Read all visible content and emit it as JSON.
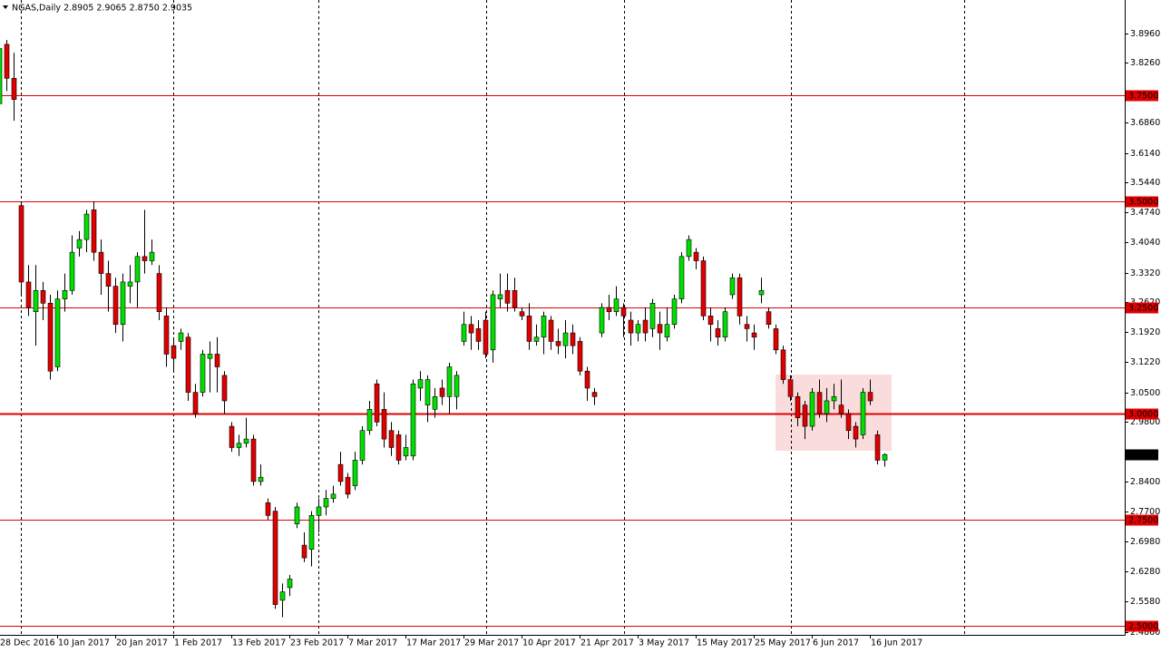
{
  "chart_data": {
    "type": "candlestick",
    "title": "NGAS,Daily  2.8905 2.9065 2.8750 2.9035",
    "categories": [
      "28 Dec 2016",
      null,
      null,
      null,
      null,
      null,
      null,
      null,
      "10 Jan 2017",
      null,
      null,
      null,
      null,
      null,
      null,
      null,
      "20 Jan 2017",
      null,
      null,
      null,
      null,
      null,
      null,
      null,
      "1 Feb 2017",
      null,
      null,
      null,
      null,
      null,
      null,
      null,
      "13 Feb 2017",
      null,
      null,
      null,
      null,
      null,
      null,
      null,
      "23 Feb 2017",
      null,
      null,
      null,
      null,
      null,
      null,
      null,
      "7 Mar 2017",
      null,
      null,
      null,
      null,
      null,
      null,
      null,
      "17 Mar 2017",
      null,
      null,
      null,
      null,
      null,
      null,
      null,
      "29 Mar 2017",
      null,
      null,
      null,
      null,
      null,
      null,
      null,
      "10 Apr 2017",
      null,
      null,
      null,
      null,
      null,
      null,
      null,
      "21 Apr 2017",
      null,
      null,
      null,
      null,
      null,
      null,
      null,
      "3 May 2017",
      null,
      null,
      null,
      null,
      null,
      null,
      null,
      "15 May 2017",
      null,
      null,
      null,
      null,
      null,
      null,
      null,
      "25 May 2017",
      null,
      null,
      null,
      null,
      null,
      null,
      null,
      "6 Jun 2017",
      null,
      null,
      null,
      null,
      null,
      null,
      null,
      "16 Jun 2017",
      null,
      null
    ],
    "open": [
      3.73,
      3.87,
      3.79,
      3.49,
      3.31,
      3.24,
      3.29,
      3.26,
      3.11,
      3.27,
      3.29,
      3.39,
      3.41,
      3.48,
      3.38,
      3.33,
      3.3,
      3.21,
      3.3,
      3.31,
      3.37,
      3.36,
      3.33,
      3.23,
      3.16,
      3.17,
      3.18,
      3.05,
      3.05,
      3.13,
      3.14,
      3.09,
      2.97,
      2.92,
      2.93,
      2.94,
      2.84,
      2.79,
      2.77,
      2.56,
      2.59,
      2.74,
      2.69,
      2.68,
      2.76,
      2.78,
      2.8,
      2.88,
      2.85,
      2.83,
      2.89,
      2.96,
      3.07,
      3.01,
      2.96,
      2.95,
      2.9,
      2.9,
      3.06,
      3.02,
      3.01,
      3.06,
      3.04,
      3.04,
      3.17,
      3.21,
      3.2,
      3.22,
      3.15,
      3.27,
      3.29,
      3.29,
      3.24,
      3.23,
      3.17,
      3.18,
      3.22,
      3.17,
      3.16,
      3.19,
      3.17,
      3.1,
      3.05,
      3.19,
      3.25,
      3.24,
      3.25,
      3.22,
      3.19,
      3.22,
      3.2,
      3.21,
      3.18,
      3.21,
      3.27,
      3.37,
      3.38,
      3.36,
      3.23,
      3.2,
      3.18,
      3.28,
      3.32,
      3.21,
      3.19,
      3.28,
      3.24,
      3.2,
      3.15,
      3.08,
      3.04,
      3.02,
      2.97,
      3.05,
      3.0,
      3.03,
      3.02,
      3.0,
      2.97,
      2.95,
      3.05,
      2.95,
      2.8905
    ],
    "high": [
      3.87,
      3.88,
      3.85,
      3.5,
      3.35,
      3.35,
      3.31,
      3.28,
      3.29,
      3.33,
      3.42,
      3.43,
      3.48,
      3.5,
      3.41,
      3.36,
      3.32,
      3.33,
      3.35,
      3.38,
      3.48,
      3.41,
      3.35,
      3.25,
      3.18,
      3.2,
      3.19,
      3.07,
      3.15,
      3.17,
      3.18,
      3.1,
      2.98,
      2.95,
      2.99,
      2.95,
      2.88,
      2.8,
      2.78,
      2.6,
      2.62,
      2.79,
      2.72,
      2.77,
      2.8,
      2.82,
      2.83,
      2.91,
      2.86,
      2.91,
      2.97,
      3.03,
      3.08,
      3.05,
      2.98,
      2.96,
      2.95,
      3.08,
      3.1,
      3.09,
      3.06,
      3.08,
      3.12,
      3.1,
      3.24,
      3.23,
      3.22,
      3.24,
      3.29,
      3.33,
      3.33,
      3.32,
      3.25,
      3.26,
      3.21,
      3.24,
      3.23,
      3.2,
      3.22,
      3.21,
      3.18,
      3.11,
      3.06,
      3.26,
      3.28,
      3.3,
      3.26,
      3.24,
      3.22,
      3.25,
      3.27,
      3.24,
      3.25,
      3.28,
      3.38,
      3.42,
      3.39,
      3.37,
      3.25,
      3.22,
      3.25,
      3.33,
      3.33,
      3.23,
      3.21,
      3.32,
      3.25,
      3.21,
      3.16,
      3.09,
      3.05,
      3.03,
      3.06,
      3.08,
      3.06,
      3.07,
      3.08,
      3.01,
      2.98,
      3.06,
      3.08,
      2.96,
      2.9065
    ],
    "low": [
      3.72,
      3.76,
      3.69,
      3.28,
      3.23,
      3.16,
      3.22,
      3.08,
      3.1,
      3.24,
      3.28,
      3.37,
      3.38,
      3.36,
      3.28,
      3.24,
      3.19,
      3.17,
      3.26,
      3.25,
      3.33,
      3.35,
      3.22,
      3.11,
      3.1,
      3.15,
      3.03,
      2.99,
      3.04,
      3.05,
      3.05,
      3.0,
      2.91,
      2.9,
      2.92,
      2.83,
      2.83,
      2.75,
      2.54,
      2.52,
      2.57,
      2.73,
      2.65,
      2.64,
      2.72,
      2.76,
      2.79,
      2.83,
      2.8,
      2.82,
      2.88,
      2.95,
      2.97,
      2.92,
      2.9,
      2.88,
      2.89,
      2.89,
      3.03,
      2.98,
      2.99,
      3.02,
      3.0,
      3.01,
      3.16,
      3.15,
      3.15,
      3.13,
      3.12,
      3.25,
      3.24,
      3.24,
      3.22,
      3.15,
      3.16,
      3.14,
      3.15,
      3.14,
      3.13,
      3.14,
      3.09,
      3.03,
      3.02,
      3.18,
      3.22,
      3.23,
      3.18,
      3.16,
      3.17,
      3.17,
      3.18,
      3.15,
      3.17,
      3.2,
      3.26,
      3.36,
      3.34,
      3.22,
      3.17,
      3.16,
      3.17,
      3.27,
      3.21,
      3.17,
      3.15,
      3.26,
      3.2,
      3.14,
      3.07,
      3.03,
      2.97,
      2.94,
      2.96,
      2.99,
      2.98,
      3.01,
      2.99,
      2.94,
      2.92,
      2.94,
      3.02,
      2.88,
      2.875
    ],
    "close": [
      3.86,
      3.79,
      3.74,
      3.31,
      3.25,
      3.29,
      3.26,
      3.1,
      3.27,
      3.29,
      3.38,
      3.41,
      3.47,
      3.38,
      3.33,
      3.3,
      3.21,
      3.31,
      3.31,
      3.37,
      3.36,
      3.38,
      3.24,
      3.14,
      3.13,
      3.19,
      3.05,
      3.0,
      3.14,
      3.14,
      3.11,
      3.03,
      2.92,
      2.93,
      2.94,
      2.84,
      2.85,
      2.76,
      2.55,
      2.58,
      2.61,
      2.78,
      2.66,
      2.76,
      2.78,
      2.8,
      2.81,
      2.84,
      2.81,
      2.89,
      2.96,
      3.01,
      2.98,
      2.94,
      2.92,
      2.89,
      2.92,
      3.07,
      3.08,
      3.08,
      3.04,
      3.04,
      3.11,
      3.09,
      3.21,
      3.19,
      3.17,
      3.14,
      3.28,
      3.28,
      3.26,
      3.25,
      3.23,
      3.17,
      3.18,
      3.23,
      3.17,
      3.16,
      3.19,
      3.16,
      3.1,
      3.06,
      3.04,
      3.25,
      3.24,
      3.27,
      3.23,
      3.19,
      3.21,
      3.19,
      3.26,
      3.19,
      3.21,
      3.27,
      3.37,
      3.41,
      3.36,
      3.23,
      3.21,
      3.18,
      3.24,
      3.32,
      3.23,
      3.2,
      3.18,
      3.29,
      3.21,
      3.15,
      3.08,
      3.04,
      2.99,
      2.97,
      3.05,
      3.0,
      3.03,
      3.04,
      3.0,
      2.96,
      2.94,
      3.05,
      3.03,
      2.89,
      2.9035
    ],
    "up_color": "#00e000",
    "down_color": "#e00000",
    "ylim": [
      2.4786,
      3.9744
    ],
    "yticks": [
      {
        "value": 3.896,
        "label": "3.8960"
      },
      {
        "value": 3.826,
        "label": "3.8260"
      },
      {
        "value": 3.686,
        "label": "3.6860"
      },
      {
        "value": 3.614,
        "label": "3.6140"
      },
      {
        "value": 3.544,
        "label": "3.5440"
      },
      {
        "value": 3.474,
        "label": "3.4740"
      },
      {
        "value": 3.404,
        "label": "3.4040"
      },
      {
        "value": 3.332,
        "label": "3.3320"
      },
      {
        "value": 3.262,
        "label": "3.2620"
      },
      {
        "value": 3.192,
        "label": "3.1920"
      },
      {
        "value": 3.122,
        "label": "3.1220"
      },
      {
        "value": 3.05,
        "label": "3.0500"
      },
      {
        "value": 2.98,
        "label": "2.9800"
      },
      {
        "value": 2.84,
        "label": "2.8400"
      },
      {
        "value": 2.77,
        "label": "2.7700"
      },
      {
        "value": 2.698,
        "label": "2.6980"
      },
      {
        "value": 2.628,
        "label": "2.6280"
      },
      {
        "value": 2.558,
        "label": "2.5580"
      },
      {
        "value": 2.486,
        "label": "2.4860"
      }
    ],
    "hlines": [
      {
        "value": 3.75,
        "label": "3.7500"
      },
      {
        "value": 3.5,
        "label": "3.5000"
      },
      {
        "value": 3.25,
        "label": "3.2500"
      },
      {
        "value": 3.0,
        "label": "3.0000"
      },
      {
        "value": 2.75,
        "label": "2.7500"
      },
      {
        "value": 2.5,
        "label": "2.5000"
      }
    ],
    "hline_color": "#e00000",
    "current_price": {
      "value": 2.9035,
      "label": "2.9035"
    }
  }
}
